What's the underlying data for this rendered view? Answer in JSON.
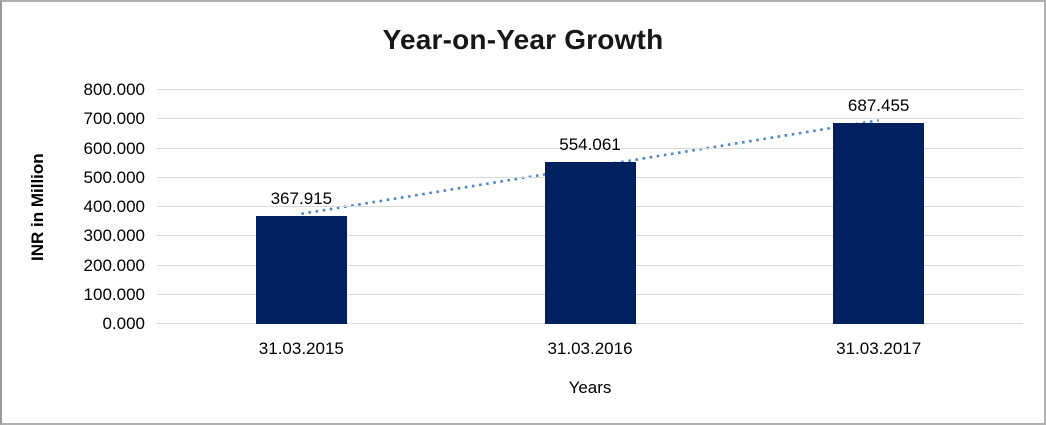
{
  "chart_data": {
    "type": "bar",
    "title": "Year-on-Year Growth",
    "xlabel": "Years",
    "ylabel": "INR in Million",
    "categories": [
      "31.03.2015",
      "31.03.2016",
      "31.03.2017"
    ],
    "values": [
      367.915,
      554.061,
      687.455
    ],
    "value_labels": [
      "367.915",
      "554.061",
      "687.455"
    ],
    "ylim": [
      0,
      800
    ],
    "ytick_step": 100,
    "ytick_labels": [
      "0.000",
      "100.000",
      "200.000",
      "300.000",
      "400.000",
      "500.000",
      "600.000",
      "700.000",
      "800.000"
    ],
    "grid": true,
    "legend": "none",
    "colors": {
      "bar": "#002060",
      "trendline": "#4f86c6",
      "gridline": "#d9d9d9",
      "frame_border": "#b0b0b0",
      "text": "#000000"
    },
    "trendline": {
      "type": "linear",
      "style": "dotted"
    }
  }
}
